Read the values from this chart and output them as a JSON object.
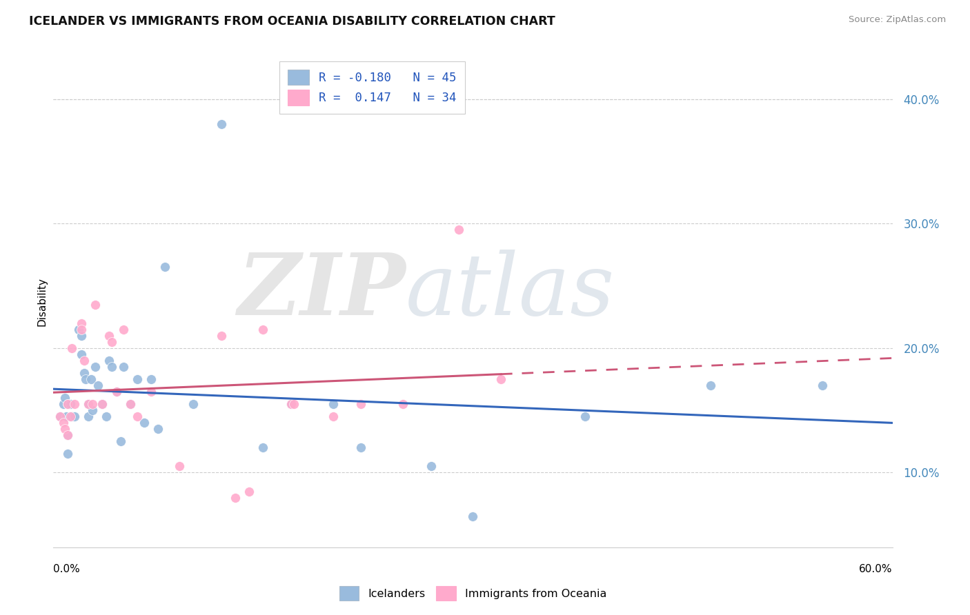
{
  "title": "ICELANDER VS IMMIGRANTS FROM OCEANIA DISABILITY CORRELATION CHART",
  "source": "Source: ZipAtlas.com",
  "ylabel": "Disability",
  "xlim": [
    0.0,
    0.6
  ],
  "ylim": [
    0.04,
    0.435
  ],
  "y_ticks": [
    0.1,
    0.2,
    0.3,
    0.4
  ],
  "y_tick_labels": [
    "10.0%",
    "20.0%",
    "30.0%",
    "40.0%"
  ],
  "blue_scatter_color": "#99BBDD",
  "pink_scatter_color": "#FFAACC",
  "blue_line_color": "#3366BB",
  "pink_line_color": "#CC5577",
  "grid_color": "#CCCCCC",
  "watermark_zip": "ZIP",
  "watermark_atlas": "atlas",
  "legend_label1": "R = -0.180   N = 45",
  "legend_label2": "R =  0.147   N = 34",
  "bottom_label1": "Icelanders",
  "bottom_label2": "Immigrants from Oceania",
  "icelanders_x": [
    0.005,
    0.007,
    0.008,
    0.009,
    0.01,
    0.01,
    0.01,
    0.012,
    0.013,
    0.015,
    0.018,
    0.02,
    0.02,
    0.022,
    0.023,
    0.025,
    0.025,
    0.027,
    0.028,
    0.03,
    0.032,
    0.035,
    0.038,
    0.04,
    0.042,
    0.045,
    0.048,
    0.05,
    0.055,
    0.06,
    0.065,
    0.07,
    0.075,
    0.08,
    0.1,
    0.12,
    0.15,
    0.17,
    0.2,
    0.22,
    0.27,
    0.3,
    0.38,
    0.47,
    0.55
  ],
  "icelanders_y": [
    0.145,
    0.155,
    0.16,
    0.145,
    0.155,
    0.13,
    0.115,
    0.155,
    0.145,
    0.145,
    0.215,
    0.21,
    0.195,
    0.18,
    0.175,
    0.155,
    0.145,
    0.175,
    0.15,
    0.185,
    0.17,
    0.155,
    0.145,
    0.19,
    0.185,
    0.165,
    0.125,
    0.185,
    0.155,
    0.175,
    0.14,
    0.175,
    0.135,
    0.265,
    0.155,
    0.38,
    0.12,
    0.155,
    0.155,
    0.12,
    0.105,
    0.065,
    0.145,
    0.17,
    0.17
  ],
  "oceania_x": [
    0.005,
    0.007,
    0.008,
    0.01,
    0.01,
    0.012,
    0.013,
    0.015,
    0.02,
    0.02,
    0.022,
    0.025,
    0.028,
    0.03,
    0.035,
    0.04,
    0.042,
    0.045,
    0.05,
    0.055,
    0.06,
    0.07,
    0.09,
    0.12,
    0.13,
    0.14,
    0.15,
    0.17,
    0.172,
    0.2,
    0.22,
    0.25,
    0.29,
    0.32
  ],
  "oceania_y": [
    0.145,
    0.14,
    0.135,
    0.155,
    0.13,
    0.145,
    0.2,
    0.155,
    0.22,
    0.215,
    0.19,
    0.155,
    0.155,
    0.235,
    0.155,
    0.21,
    0.205,
    0.165,
    0.215,
    0.155,
    0.145,
    0.165,
    0.105,
    0.21,
    0.08,
    0.085,
    0.215,
    0.155,
    0.155,
    0.145,
    0.155,
    0.155,
    0.295,
    0.175
  ]
}
